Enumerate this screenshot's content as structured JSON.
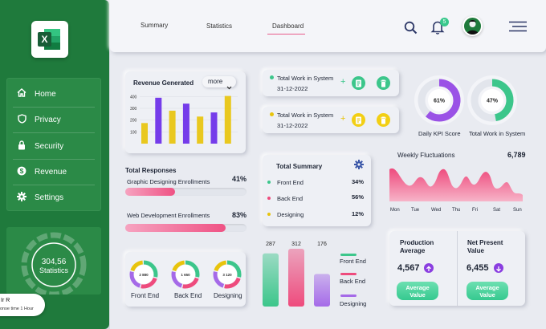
{
  "app": {
    "logo": "excel-logo"
  },
  "sidebar": {
    "items": [
      {
        "label": "Home",
        "icon": "home-icon"
      },
      {
        "label": "Privacy",
        "icon": "shield-icon"
      },
      {
        "label": "Security",
        "icon": "lock-icon"
      },
      {
        "label": "Revenue",
        "icon": "dollar-icon"
      },
      {
        "label": "Settings",
        "icon": "gear-icon"
      }
    ],
    "stat_value": "304,56",
    "stat_label": "Statistics",
    "toast_name": "Ir R",
    "toast_sub": "onse time 1 Hour"
  },
  "topbar": {
    "tabs": [
      "Summary",
      "Statistics",
      "Dashboard"
    ],
    "active_tab": "Dashboard",
    "notification_count": "5"
  },
  "revenue": {
    "title": "Revenue Generated",
    "more_label": "more",
    "chart_data": {
      "type": "bar",
      "y_ticks": [
        "400",
        "300",
        "200",
        "100"
      ],
      "ylim": [
        0,
        450
      ],
      "series": [
        {
          "values": [
            390,
            340,
            405
          ]
        },
        {
          "values": [
            175,
            280,
            230,
            265
          ]
        }
      ],
      "order": [
        "y",
        "p",
        "y",
        "p",
        "y",
        "p",
        "y"
      ],
      "values": [
        175,
        390,
        280,
        340,
        230,
        265,
        405
      ],
      "colors": {
        "purple": "#6a2de8",
        "yellow": "#e8c40c"
      }
    }
  },
  "responses": {
    "title": "Total Responses",
    "items": [
      {
        "label": "Graphic Designing Enrollments",
        "pct": "41%",
        "value": 0.41
      },
      {
        "label": "Web Development Enrollments",
        "pct": "83%",
        "value": 0.83
      }
    ]
  },
  "work_cards": [
    {
      "title": "Total Work in System",
      "date": "31-12-2022",
      "dot_color": "#3cc68b",
      "action": "green"
    },
    {
      "title": "Total Work in System",
      "date": "31-12-2022",
      "dot_color": "#e8c40c",
      "action": "yellow"
    }
  ],
  "total_summary": {
    "title": "Total Summary",
    "items": [
      {
        "label": "Front End",
        "pct": "34%",
        "color": "#3cc68b"
      },
      {
        "label": "Back End",
        "pct": "56%",
        "color": "#ee4b7d"
      },
      {
        "label": "Designing",
        "pct": "12%",
        "color": "#e8c40c"
      }
    ]
  },
  "kpis": [
    {
      "value": "61%",
      "label": "Daily KPI Score",
      "fraction": 0.61,
      "color": "#9a52e6"
    },
    {
      "value": "47%",
      "label": "Total Work in System",
      "fraction": 0.47,
      "color": "#3cc68b"
    }
  ],
  "weekly": {
    "title": "Weekly Fluctuations",
    "total": "6,789",
    "days": [
      "Mon",
      "Tue",
      "Wed",
      "Thu",
      "Fri",
      "Sat",
      "Sun"
    ]
  },
  "donuts": [
    {
      "value": "2 880",
      "label": "Front End"
    },
    {
      "value": "1 650",
      "label": "Back End"
    },
    {
      "value": "3 120",
      "label": "Designing"
    }
  ],
  "pillars": {
    "chart_data": {
      "type": "bar",
      "categories": [
        "Front End",
        "Back End",
        "Designing"
      ],
      "values": [
        287,
        312,
        176
      ],
      "labels": [
        "287",
        "312",
        "176"
      ],
      "colors": [
        "#3cc68b",
        "#ee4b7d",
        "#a56ae8"
      ]
    }
  },
  "production": {
    "title_1": "Production",
    "title_2": "Average",
    "value": "4,567",
    "button_1": "Average",
    "button_2": "Value"
  },
  "npv": {
    "title_1": "Net Present",
    "title_2": "Value",
    "value": "6,455",
    "button_1": "Average",
    "button_2": "Value"
  }
}
